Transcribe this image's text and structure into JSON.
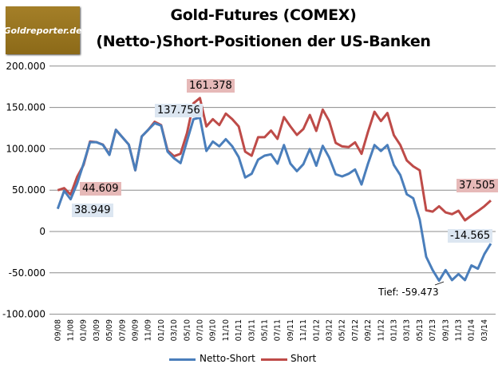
{
  "logo_text": "Goldreporter.de",
  "chart_data": {
    "type": "line",
    "title": [
      "Gold-Futures (COMEX)",
      "(Netto-)Short-Positionen der US-Banken"
    ],
    "ylim": [
      -100000,
      200000
    ],
    "y_ticks": [
      200000,
      150000,
      100000,
      50000,
      0,
      -50000,
      -100000
    ],
    "y_tick_labels": [
      "200.000",
      "150.000",
      "100.000",
      "50.000",
      "0",
      "-50.000",
      "-100.000"
    ],
    "x_interval": "monthly, every second month labeled",
    "x_tick_labels": [
      "09/08",
      "11/08",
      "01/09",
      "03/09",
      "05/09",
      "07/09",
      "09/09",
      "11/09",
      "01/10",
      "03/10",
      "05/10",
      "07/10",
      "09/10",
      "11/10",
      "01/11",
      "03/11",
      "05/11",
      "07/11",
      "09/11",
      "11/11",
      "01/12",
      "03/12",
      "05/12",
      "07/12",
      "09/12",
      "11/12",
      "01/13",
      "03/13",
      "05/13",
      "07/13",
      "09/13",
      "11/13",
      "01/14",
      "03/14"
    ],
    "grid": true,
    "legend": "bottom",
    "series": [
      {
        "name": "Netto-Short",
        "color": "#4a7ebb",
        "values": [
          27400,
          49200,
          38949,
          57900,
          82000,
          108000,
          108000,
          104700,
          92700,
          123000,
          114000,
          105000,
          74000,
          115000,
          123000,
          131000,
          128000,
          96500,
          88500,
          82700,
          109400,
          135800,
          137756,
          97400,
          108800,
          103000,
          111600,
          103000,
          90000,
          65300,
          69800,
          86900,
          91700,
          93300,
          82000,
          104500,
          82000,
          73000,
          81400,
          99700,
          79500,
          103600,
          89400,
          69200,
          66600,
          69800,
          75000,
          56900,
          82000,
          104500,
          97400,
          104500,
          80400,
          68200,
          45000,
          40200,
          14500,
          -30500,
          -46600,
          -59473,
          -46600,
          -58800,
          -51400,
          -58800,
          -41000,
          -45000,
          -27300,
          -14565
        ]
      },
      {
        "name": "Short",
        "color": "#be4b48",
        "values": [
          49900,
          52400,
          44609,
          66000,
          80400,
          108800,
          108000,
          105000,
          93300,
          123000,
          114000,
          105000,
          74000,
          115000,
          122900,
          132600,
          128700,
          98000,
          91000,
          94000,
          119000,
          155000,
          161378,
          127000,
          135800,
          128700,
          142600,
          135800,
          127000,
          96500,
          91600,
          114000,
          114000,
          122000,
          112000,
          138300,
          127000,
          116800,
          123900,
          140900,
          121600,
          147400,
          133500,
          107100,
          102900,
          102000,
          107800,
          93900,
          120600,
          144800,
          133500,
          143200,
          116500,
          104500,
          85900,
          78800,
          73900,
          25700,
          24000,
          30500,
          23100,
          20900,
          25100,
          13500,
          19300,
          24700,
          30500,
          37505
        ]
      }
    ],
    "annotations": {
      "netto_start": "38.949",
      "short_start": "44.609",
      "netto_peak": "137.756",
      "short_peak": "161.378",
      "short_end": "37.505",
      "netto_end": "-14.565",
      "netto_low": "Tief: -59.473"
    }
  }
}
